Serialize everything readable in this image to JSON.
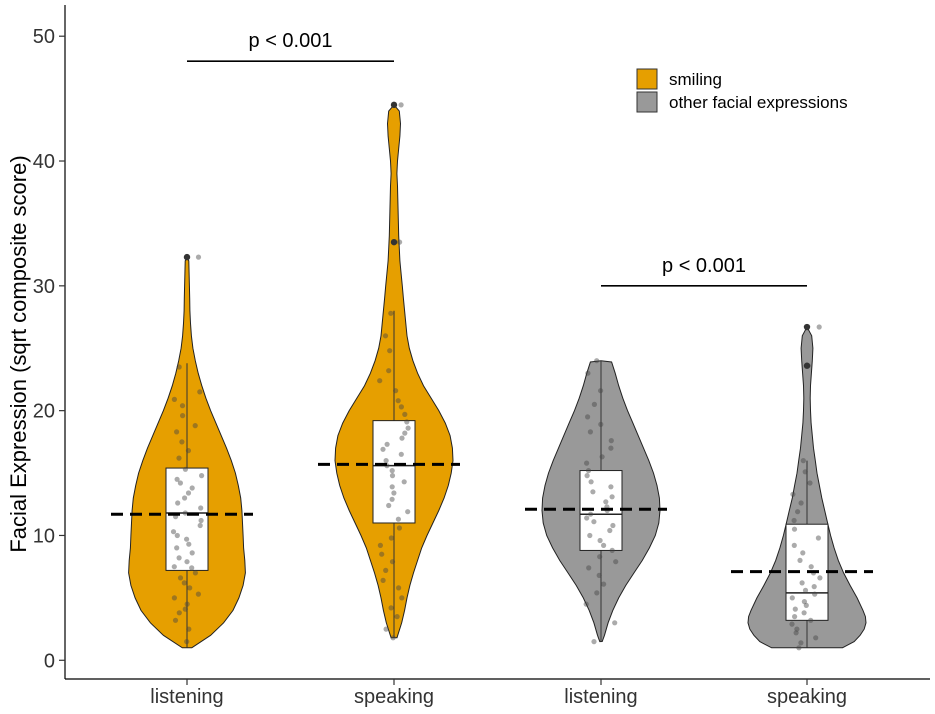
{
  "chart_data": {
    "type": "violin",
    "title": "",
    "xlabel": "",
    "ylabel": "Facial Expression (sqrt composite score)",
    "ylim": [
      -1.5,
      52.5
    ],
    "yticks": [
      0,
      10,
      20,
      30,
      40,
      50
    ],
    "grid": false,
    "legend_position": "top-right",
    "legend": [
      {
        "label": "smiling",
        "color": "#E69F00"
      },
      {
        "label": "other facial expressions",
        "color": "#999999"
      }
    ],
    "categories": [
      "listening",
      "speaking",
      "listening",
      "speaking"
    ],
    "groups": [
      {
        "category": "listening",
        "series": "smiling",
        "color": "#E69F00",
        "min": 1.0,
        "max": 32.3,
        "box": {
          "q1": 7.2,
          "median": 11.8,
          "q3": 15.4,
          "whisker_low": 1.0,
          "whisker_high": 23.8
        },
        "mean": 11.7,
        "outliers": [
          32.3
        ],
        "density": [
          [
            1,
            0.08
          ],
          [
            2,
            0.4
          ],
          [
            3,
            0.62
          ],
          [
            4,
            0.78
          ],
          [
            5,
            0.88
          ],
          [
            6,
            0.95
          ],
          [
            7,
            0.99
          ],
          [
            8,
            0.98
          ],
          [
            9,
            0.96
          ],
          [
            10,
            0.95
          ],
          [
            11,
            0.94
          ],
          [
            12,
            0.93
          ],
          [
            13,
            0.91
          ],
          [
            14,
            0.87
          ],
          [
            15,
            0.82
          ],
          [
            16,
            0.75
          ],
          [
            17,
            0.67
          ],
          [
            18,
            0.58
          ],
          [
            19,
            0.49
          ],
          [
            20,
            0.4
          ],
          [
            21,
            0.32
          ],
          [
            22,
            0.25
          ],
          [
            23,
            0.19
          ],
          [
            24,
            0.14
          ],
          [
            25,
            0.1
          ],
          [
            26,
            0.075
          ],
          [
            27,
            0.06
          ],
          [
            28,
            0.05
          ],
          [
            29,
            0.045
          ],
          [
            30,
            0.04
          ],
          [
            31,
            0.035
          ],
          [
            32,
            0.03
          ],
          [
            32.3,
            0.0
          ]
        ],
        "points": [
          1.5,
          2.5,
          3.2,
          3.8,
          4.1,
          4.5,
          5.0,
          5.3,
          5.8,
          6.2,
          6.6,
          7.0,
          7.4,
          7.5,
          7.9,
          8.2,
          8.6,
          9.0,
          9.3,
          9.7,
          10.0,
          10.3,
          10.8,
          11.2,
          11.5,
          11.8,
          12.2,
          12.6,
          13.0,
          13.4,
          13.8,
          14.2,
          14.5,
          14.8,
          15.3,
          16.2,
          16.8,
          17.5,
          18.3,
          18.8,
          19.6,
          20.4,
          20.9,
          21.5,
          23.5,
          32.3
        ]
      },
      {
        "category": "speaking",
        "series": "smiling",
        "color": "#E69F00",
        "min": 1.8,
        "max": 44.5,
        "box": {
          "q1": 11.0,
          "median": 15.6,
          "q3": 19.2,
          "whisker_low": 1.8,
          "whisker_high": 28.0
        },
        "mean": 15.7,
        "outliers": [
          33.5,
          44.5
        ],
        "density": [
          [
            1.8,
            0.05
          ],
          [
            3,
            0.13
          ],
          [
            4,
            0.18
          ],
          [
            5,
            0.22
          ],
          [
            6,
            0.27
          ],
          [
            7,
            0.33
          ],
          [
            8,
            0.4
          ],
          [
            9,
            0.47
          ],
          [
            10,
            0.56
          ],
          [
            11,
            0.66
          ],
          [
            12,
            0.76
          ],
          [
            13,
            0.85
          ],
          [
            14,
            0.92
          ],
          [
            15,
            0.97
          ],
          [
            16,
            1.0
          ],
          [
            17,
            0.99
          ],
          [
            18,
            0.95
          ],
          [
            19,
            0.87
          ],
          [
            20,
            0.76
          ],
          [
            21,
            0.63
          ],
          [
            22,
            0.5
          ],
          [
            23,
            0.4
          ],
          [
            24,
            0.32
          ],
          [
            25,
            0.26
          ],
          [
            26,
            0.22
          ],
          [
            27,
            0.2
          ],
          [
            28,
            0.18
          ],
          [
            29,
            0.16
          ],
          [
            30,
            0.14
          ],
          [
            31,
            0.12
          ],
          [
            32,
            0.1
          ],
          [
            33,
            0.09
          ],
          [
            34,
            0.08
          ],
          [
            35,
            0.075
          ],
          [
            36,
            0.07
          ],
          [
            37,
            0.065
          ],
          [
            38,
            0.06
          ],
          [
            39,
            0.05
          ],
          [
            40,
            0.06
          ],
          [
            41,
            0.08
          ],
          [
            42,
            0.1
          ],
          [
            43,
            0.11
          ],
          [
            44,
            0.09
          ],
          [
            44.5,
            0.0
          ]
        ],
        "points": [
          1.8,
          2.5,
          3.5,
          4.2,
          5.0,
          5.8,
          6.4,
          7.2,
          7.9,
          8.5,
          9.2,
          9.8,
          10.6,
          11.3,
          11.9,
          12.4,
          12.9,
          13.4,
          13.9,
          14.3,
          14.8,
          15.2,
          15.6,
          16.0,
          16.5,
          16.9,
          17.3,
          17.8,
          18.2,
          18.6,
          19.1,
          19.7,
          20.3,
          20.8,
          21.6,
          22.4,
          23.2,
          24.8,
          26.0,
          27.8,
          33.5,
          44.5
        ]
      },
      {
        "category": "listening",
        "series": "other facial expressions",
        "color": "#999999",
        "min": 1.5,
        "max": 24.0,
        "box": {
          "q1": 8.8,
          "median": 11.7,
          "q3": 15.2,
          "whisker_low": 1.5,
          "whisker_high": 24.0
        },
        "mean": 12.1,
        "outliers": [],
        "density": [
          [
            1.5,
            0.02
          ],
          [
            2,
            0.06
          ],
          [
            3,
            0.12
          ],
          [
            4,
            0.2
          ],
          [
            5,
            0.3
          ],
          [
            6,
            0.42
          ],
          [
            7,
            0.56
          ],
          [
            8,
            0.7
          ],
          [
            9,
            0.82
          ],
          [
            10,
            0.92
          ],
          [
            11,
            0.98
          ],
          [
            12,
            1.0
          ],
          [
            13,
            0.99
          ],
          [
            14,
            0.95
          ],
          [
            15,
            0.89
          ],
          [
            16,
            0.81
          ],
          [
            17,
            0.72
          ],
          [
            18,
            0.63
          ],
          [
            19,
            0.54
          ],
          [
            20,
            0.45
          ],
          [
            21,
            0.37
          ],
          [
            22,
            0.3
          ],
          [
            23,
            0.24
          ],
          [
            23.9,
            0.18
          ],
          [
            24,
            0.0
          ]
        ],
        "points": [
          1.5,
          3.0,
          4.5,
          5.4,
          6.1,
          6.8,
          7.4,
          7.9,
          8.3,
          8.8,
          9.2,
          9.6,
          10.0,
          10.4,
          10.8,
          11.1,
          11.4,
          11.7,
          12.0,
          12.3,
          12.7,
          13.1,
          13.5,
          13.9,
          14.3,
          14.8,
          15.2,
          15.8,
          16.3,
          17.0,
          17.6,
          18.3,
          18.9,
          19.5,
          20.5,
          21.6,
          23.0,
          24.0
        ]
      },
      {
        "category": "speaking",
        "series": "other facial expressions",
        "color": "#999999",
        "min": 1.0,
        "max": 26.7,
        "box": {
          "q1": 3.2,
          "median": 5.4,
          "q3": 10.9,
          "whisker_low": 1.0,
          "whisker_high": 16.0
        },
        "mean": 7.1,
        "outliers": [
          23.6,
          26.7
        ],
        "density": [
          [
            1,
            0.6
          ],
          [
            1.5,
            0.8
          ],
          [
            2,
            0.9
          ],
          [
            2.5,
            0.97
          ],
          [
            3,
            1.0
          ],
          [
            3.5,
            0.99
          ],
          [
            4,
            0.95
          ],
          [
            5,
            0.85
          ],
          [
            6,
            0.73
          ],
          [
            7,
            0.62
          ],
          [
            8,
            0.53
          ],
          [
            9,
            0.46
          ],
          [
            10,
            0.4
          ],
          [
            11,
            0.35
          ],
          [
            12,
            0.3
          ],
          [
            13,
            0.25
          ],
          [
            14,
            0.21
          ],
          [
            15,
            0.17
          ],
          [
            16,
            0.14
          ],
          [
            17,
            0.11
          ],
          [
            18,
            0.09
          ],
          [
            19,
            0.07
          ],
          [
            20,
            0.06
          ],
          [
            21,
            0.055
          ],
          [
            22,
            0.06
          ],
          [
            23,
            0.075
          ],
          [
            24,
            0.09
          ],
          [
            25,
            0.1
          ],
          [
            26,
            0.08
          ],
          [
            26.7,
            0.0
          ]
        ],
        "points": [
          1.0,
          1.4,
          1.8,
          2.2,
          2.5,
          2.9,
          3.2,
          3.5,
          3.8,
          4.1,
          4.4,
          4.7,
          5.0,
          5.3,
          5.6,
          5.9,
          6.2,
          6.6,
          7.0,
          7.5,
          8.0,
          8.6,
          9.2,
          9.8,
          10.5,
          11.2,
          11.9,
          12.6,
          13.3,
          14.2,
          15.1,
          16.0,
          23.6,
          26.7
        ]
      }
    ],
    "annotations": [
      {
        "text": "p < 0.001",
        "from_group": 0,
        "to_group": 1,
        "y": 48.0
      },
      {
        "text": "p < 0.001",
        "from_group": 2,
        "to_group": 3,
        "y": 30.0
      }
    ]
  }
}
